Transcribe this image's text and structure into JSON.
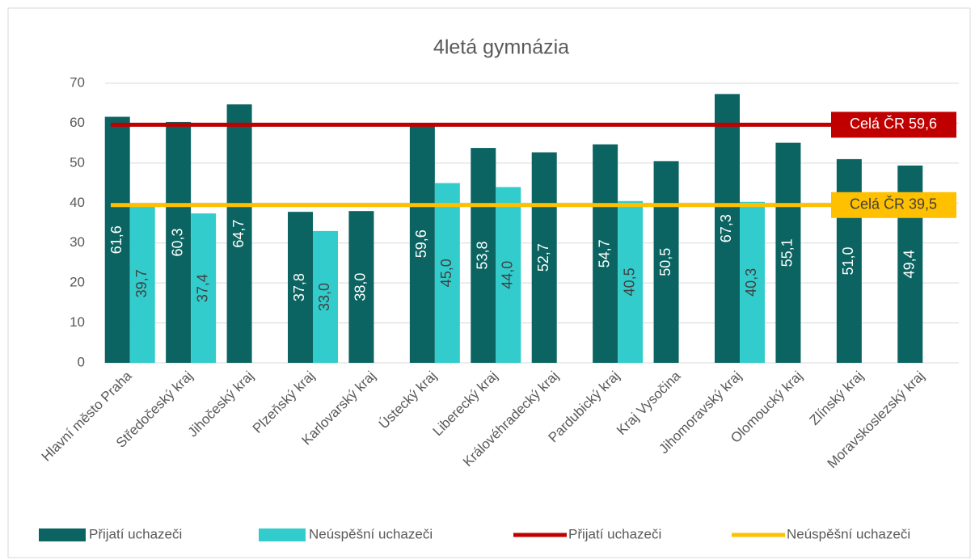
{
  "chart_data": {
    "type": "bar",
    "title": "4letá gymnázia",
    "categories": [
      "Hlavní město Praha",
      "Středočeský kraj",
      "Jihočeský kraj",
      "Plzeňský kraj",
      "Karlovarský kraj",
      "Ústecký kraj",
      "Liberecký kraj",
      "Královéhradecký kraj",
      "Pardubický kraj",
      "Kraj Vysočina",
      "Jihomoravský kraj",
      "Olomoucký kraj",
      "Zlínský kraj",
      "Moravskoslezský kraj"
    ],
    "series": [
      {
        "name": "Přijatí uchazeči",
        "color": "#0b6461",
        "values": [
          61.6,
          60.3,
          64.7,
          37.8,
          38.0,
          59.6,
          53.8,
          52.7,
          54.7,
          50.5,
          67.3,
          55.1,
          51.0,
          49.4
        ],
        "value_labels": [
          "61,6",
          "60,3",
          "64,7",
          "37,8",
          "38,0",
          "59,6",
          "53,8",
          "52,7",
          "54,7",
          "50,5",
          "67,3",
          "55,1",
          "51,0",
          "49,4"
        ]
      },
      {
        "name": "Neúspěšní uchazeči",
        "color": "#33cccc",
        "values": [
          39.7,
          37.4,
          null,
          33.0,
          null,
          45.0,
          44.0,
          null,
          40.5,
          null,
          40.3,
          null,
          null,
          null
        ],
        "value_labels": [
          "39,7",
          "37,4",
          null,
          "33,0",
          null,
          "45,0",
          "44,0",
          null,
          "40,5",
          null,
          "40,3",
          null,
          null,
          null
        ]
      }
    ],
    "reference_lines": [
      {
        "name": "Přijatí uchazeči",
        "color": "#c00000",
        "value": 59.6,
        "value_label": "Celá ČR 59,6"
      },
      {
        "name": "Neúspěšní uchazeči",
        "color": "#ffc000",
        "value": 39.5,
        "value_label": "Celá ČR 39,5"
      }
    ],
    "ylim": [
      0,
      70
    ],
    "yticks": [
      0,
      10,
      20,
      30,
      40,
      50,
      60,
      70
    ],
    "grid": true,
    "legend": "bottom"
  }
}
